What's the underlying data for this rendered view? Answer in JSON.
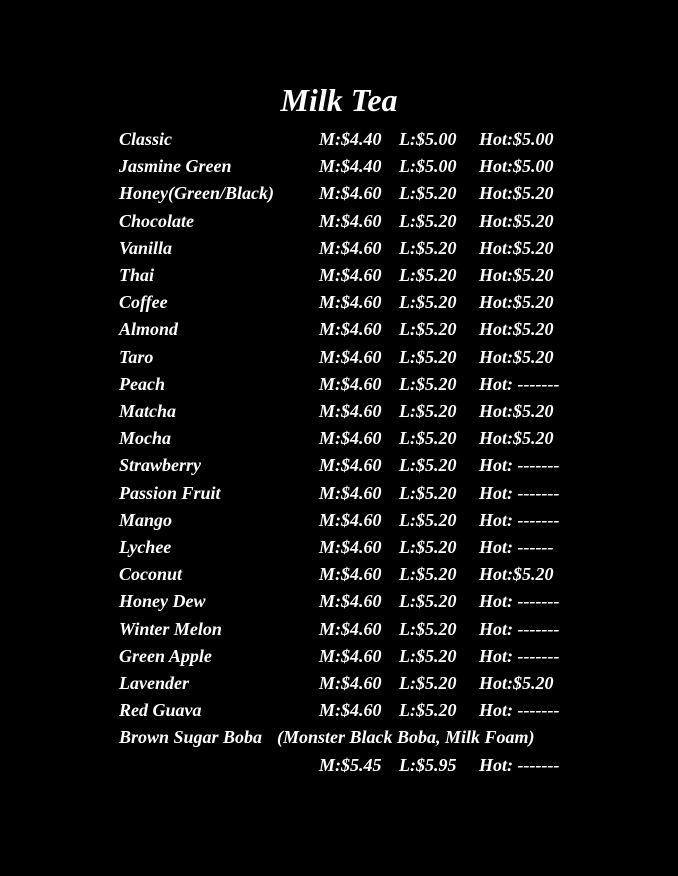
{
  "title": "Milk Tea",
  "items": [
    {
      "name": "Classic",
      "m": "M:$4.40",
      "l": "L:$5.00",
      "hot": "Hot:$5.00"
    },
    {
      "name": "Jasmine Green",
      "m": "M:$4.40",
      "l": "L:$5.00",
      "hot": "Hot:$5.00"
    },
    {
      "name": "Honey(Green/Black)",
      "m": "M:$4.60",
      "l": "L:$5.20",
      "hot": "Hot:$5.20"
    },
    {
      "name": "Chocolate",
      "m": "M:$4.60",
      "l": "L:$5.20",
      "hot": "Hot:$5.20"
    },
    {
      "name": "Vanilla",
      "m": "M:$4.60",
      "l": "L:$5.20",
      "hot": "Hot:$5.20"
    },
    {
      "name": "Thai",
      "m": "M:$4.60",
      "l": "L:$5.20",
      "hot": "Hot:$5.20"
    },
    {
      "name": "Coffee",
      "m": "M:$4.60",
      "l": "L:$5.20",
      "hot": "Hot:$5.20"
    },
    {
      "name": "Almond",
      "m": "M:$4.60",
      "l": "L:$5.20",
      "hot": "Hot:$5.20"
    },
    {
      "name": "Taro",
      "m": "M:$4.60",
      "l": "L:$5.20",
      "hot": "Hot:$5.20"
    },
    {
      "name": "Peach",
      "m": "M:$4.60",
      "l": "L:$5.20",
      "hot": "Hot: -------"
    },
    {
      "name": "Matcha",
      "m": "M:$4.60",
      "l": "L:$5.20",
      "hot": "Hot:$5.20"
    },
    {
      "name": "Mocha",
      "m": "M:$4.60",
      "l": "L:$5.20",
      "hot": "Hot:$5.20"
    },
    {
      "name": "Strawberry",
      "m": "M:$4.60",
      "l": "L:$5.20",
      "hot": "Hot: -------"
    },
    {
      "name": "Passion Fruit",
      "m": "M:$4.60",
      "l": "L:$5.20",
      "hot": "Hot: -------"
    },
    {
      "name": "Mango",
      "m": "M:$4.60",
      "l": "L:$5.20",
      "hot": "Hot: -------"
    },
    {
      "name": "Lychee",
      "m": "M:$4.60",
      "l": "L:$5.20",
      "hot": "Hot: ------"
    },
    {
      "name": "Coconut",
      "m": "M:$4.60",
      "l": "L:$5.20",
      "hot": "Hot:$5.20"
    },
    {
      "name": "Honey Dew",
      "m": "M:$4.60",
      "l": "L:$5.20",
      "hot": "Hot: -------"
    },
    {
      "name": "Winter Melon",
      "m": "M:$4.60",
      "l": "L:$5.20",
      "hot": "Hot: -------"
    },
    {
      "name": "Green Apple",
      "m": "M:$4.60",
      "l": "L:$5.20",
      "hot": "Hot: -------"
    },
    {
      "name": "Lavender",
      "m": "M:$4.60",
      "l": "L:$5.20",
      "hot": "Hot:$5.20"
    },
    {
      "name": "Red Guava",
      "m": "M:$4.60",
      "l": "L:$5.20",
      "hot": "Hot: -------"
    }
  ],
  "special": {
    "name": "Brown Sugar Boba",
    "note": "(Monster Black Boba, Milk Foam)",
    "m": "M:$5.45",
    "l": "L:$5.95",
    "hot": "Hot: -------"
  }
}
